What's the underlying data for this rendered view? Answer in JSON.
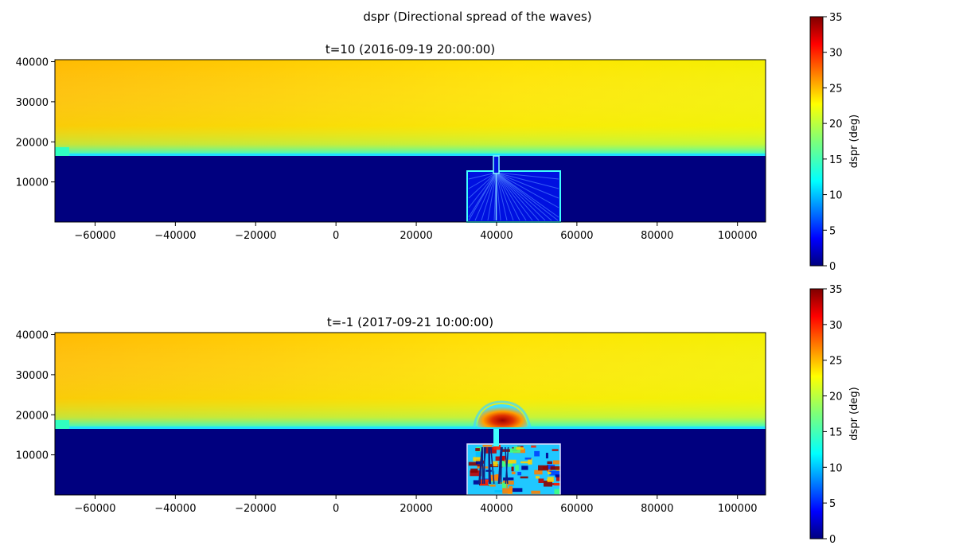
{
  "figure": {
    "suptitle": "dspr (Directional spread of the waves)"
  },
  "chart_data": [
    {
      "type": "heatmap",
      "title": "t=10 (2016-09-19 20:00:00)",
      "xlim": [
        -70000,
        107000
      ],
      "ylim": [
        0,
        40500
      ],
      "xticks": [
        -60000,
        -40000,
        -20000,
        0,
        20000,
        40000,
        60000,
        80000,
        100000
      ],
      "xtick_labels": [
        "−60000",
        "−40000",
        "−20000",
        "0",
        "20000",
        "40000",
        "60000",
        "80000",
        "100000"
      ],
      "yticks": [
        10000,
        20000,
        30000,
        40000
      ],
      "ytick_labels": [
        "10000",
        "20000",
        "30000",
        "40000"
      ],
      "colormap": "jet",
      "colorbar": {
        "label": "dspr (deg)",
        "range": [
          0,
          35
        ],
        "ticks": [
          0,
          5,
          10,
          15,
          20,
          25,
          30,
          35
        ],
        "tick_labels": [
          "0",
          "5",
          "10",
          "15",
          "20",
          "25",
          "30",
          "35"
        ]
      },
      "coastline_y": 16700,
      "offshore_value_range": [
        21,
        26
      ],
      "nearshore_value": 0,
      "harbour": {
        "x_range": [
          32500,
          56000
        ],
        "y_top": 12800,
        "channel_x": 40000,
        "inside_value_range": [
          0,
          8
        ]
      }
    },
    {
      "type": "heatmap",
      "title": "t=-1 (2017-09-21 10:00:00)",
      "xlim": [
        -70000,
        107000
      ],
      "ylim": [
        0,
        40500
      ],
      "xticks": [
        -60000,
        -40000,
        -20000,
        0,
        20000,
        40000,
        60000,
        80000,
        100000
      ],
      "xtick_labels": [
        "−60000",
        "−40000",
        "−20000",
        "0",
        "20000",
        "40000",
        "60000",
        "80000",
        "100000"
      ],
      "yticks": [
        10000,
        20000,
        30000,
        40000
      ],
      "ytick_labels": [
        "10000",
        "20000",
        "30000",
        "40000"
      ],
      "colormap": "jet",
      "colorbar": {
        "label": "dspr (deg)",
        "range": [
          0,
          35
        ],
        "ticks": [
          0,
          5,
          10,
          15,
          20,
          25,
          30,
          35
        ],
        "tick_labels": [
          "0",
          "5",
          "10",
          "15",
          "20",
          "25",
          "30",
          "35"
        ]
      },
      "coastline_y": 16700,
      "offshore_value_range": [
        21,
        26
      ],
      "nearshore_value": 0,
      "harbour": {
        "x_range": [
          32500,
          56000
        ],
        "y_top": 12800,
        "channel_x": 40000,
        "inside_value_range": [
          5,
          35
        ]
      },
      "plume": {
        "x_range": [
          34000,
          48000
        ],
        "y_range": [
          17000,
          22500
        ],
        "value_range": [
          12,
          35
        ]
      }
    }
  ]
}
